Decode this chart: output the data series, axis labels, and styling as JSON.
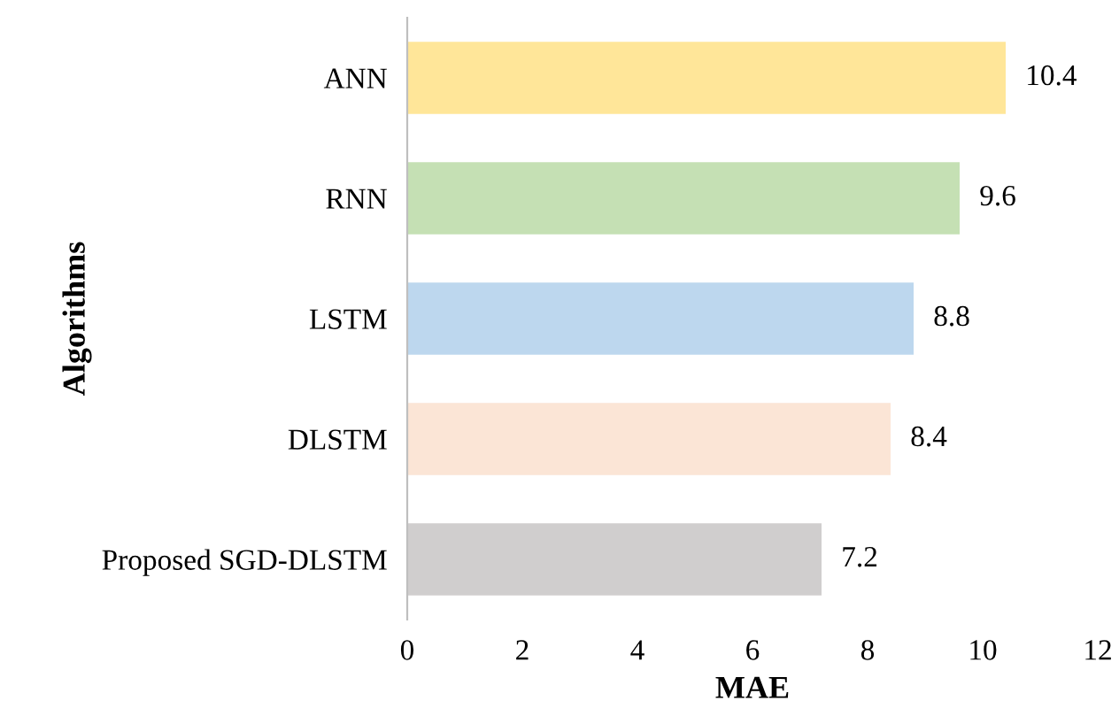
{
  "chart_data": {
    "type": "bar",
    "orientation": "horizontal",
    "xlabel": "MAE",
    "ylabel": "Algorithms",
    "categories": [
      "ANN",
      "RNN",
      "LSTM",
      "DLSTM",
      "Proposed SGD-DLSTM"
    ],
    "values": [
      10.4,
      9.6,
      8.8,
      8.4,
      7.2
    ],
    "colors": [
      "#ffe699",
      "#c5e0b4",
      "#bdd7ee",
      "#fbe5d6",
      "#d0cece"
    ],
    "xlim": [
      0,
      12
    ],
    "xticks": [
      0,
      2,
      4,
      6,
      8,
      10,
      12
    ],
    "grid": false,
    "data_labels": true
  }
}
